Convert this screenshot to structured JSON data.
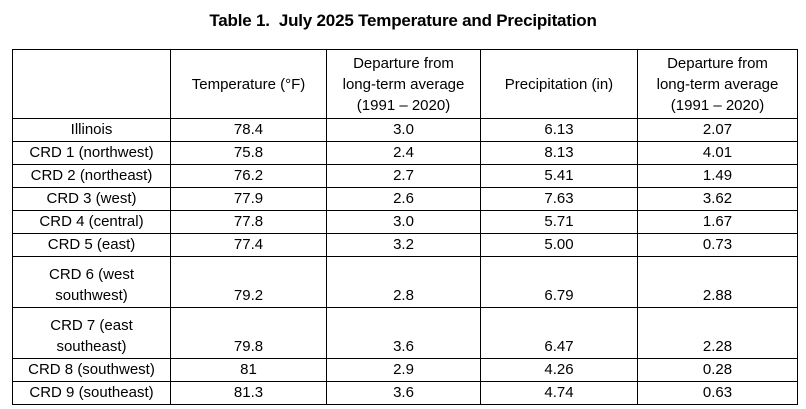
{
  "title": "Table 1.  July 2025 Temperature and Precipitation",
  "table": {
    "header": [
      {
        "lines": []
      },
      {
        "lines": [
          "Temperature (°F)"
        ]
      },
      {
        "lines": [
          "Departure from",
          "long-term average",
          "(1991 – 2020)"
        ]
      },
      {
        "lines": [
          "Precipitation (in)"
        ]
      },
      {
        "lines": [
          "Departure from",
          "long-term average",
          "(1991 – 2020)"
        ]
      }
    ],
    "rows": [
      {
        "label_lines": [
          "Illinois"
        ],
        "values": [
          "78.4",
          "3.0",
          "6.13",
          "2.07"
        ]
      },
      {
        "label_lines": [
          "CRD 1 (northwest)"
        ],
        "values": [
          "75.8",
          "2.4",
          "8.13",
          "4.01"
        ]
      },
      {
        "label_lines": [
          "CRD 2 (northeast)"
        ],
        "values": [
          "76.2",
          "2.7",
          "5.41",
          "1.49"
        ]
      },
      {
        "label_lines": [
          "CRD 3 (west)"
        ],
        "values": [
          "77.9",
          "2.6",
          "7.63",
          "3.62"
        ]
      },
      {
        "label_lines": [
          "CRD 4 (central)"
        ],
        "values": [
          "77.8",
          "3.0",
          "5.71",
          "1.67"
        ]
      },
      {
        "label_lines": [
          "CRD 5 (east)"
        ],
        "values": [
          "77.4",
          "3.2",
          "5.00",
          "0.73"
        ]
      },
      {
        "label_lines": [
          "CRD 6 (west",
          "southwest)"
        ],
        "values": [
          "79.2",
          "2.8",
          "6.79",
          "2.88"
        ]
      },
      {
        "label_lines": [
          "CRD 7 (east",
          "southeast)"
        ],
        "values": [
          "79.8",
          "3.6",
          "6.47",
          "2.28"
        ]
      },
      {
        "label_lines": [
          "CRD 8 (southwest)"
        ],
        "values": [
          "81",
          "2.9",
          "4.26",
          "0.28"
        ]
      },
      {
        "label_lines": [
          "CRD 9 (southeast)"
        ],
        "values": [
          "81.3",
          "3.6",
          "4.74",
          "0.63"
        ]
      }
    ],
    "colors": {
      "border": "#000000",
      "text": "#000000",
      "background": "#ffffff"
    }
  }
}
